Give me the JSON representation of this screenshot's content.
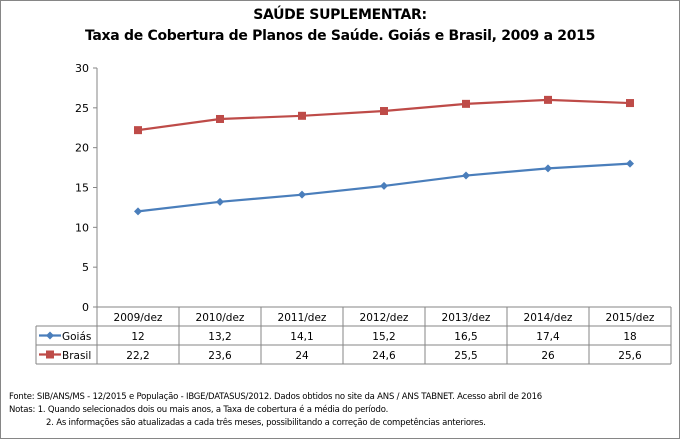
{
  "chart_data": {
    "type": "line",
    "title": "SAÚDE SUPLEMENTAR:",
    "subtitle": "Taxa de Cobertura de Planos de Saúde. Goiás e Brasil, 2009 a 2015",
    "categories": [
      "2009/dez",
      "2010/dez",
      "2011/dez",
      "2012/dez",
      "2013/dez",
      "2014/dez",
      "2015/dez"
    ],
    "series": [
      {
        "name": "Goiás",
        "values": [
          12,
          13.2,
          14.1,
          15.2,
          16.5,
          17.4,
          18
        ],
        "labels": [
          "12",
          "13,2",
          "14,1",
          "15,2",
          "16,5",
          "17,4",
          "18"
        ],
        "color": "#4a7ebb",
        "marker": "diamond"
      },
      {
        "name": "Brasil",
        "values": [
          22.2,
          23.6,
          24,
          24.6,
          25.5,
          26,
          25.6
        ],
        "labels": [
          "22,2",
          "23,6",
          "24",
          "24,6",
          "25,5",
          "26",
          "25,6"
        ],
        "color": "#be4b48",
        "marker": "square"
      }
    ],
    "ylim": [
      0,
      30
    ],
    "yticks": [
      0,
      5,
      10,
      15,
      20,
      25,
      30
    ],
    "grid": false,
    "legend": "data-table"
  },
  "notes": {
    "source": "Fonte: SIB/ANS/MS - 12/2015 e População - IBGE/DATASUS/2012. Dados obtidos no site da ANS / ANS TABNET. Acesso abril de 2016",
    "note1": "Notas: 1. Quando selecionados dois ou mais anos, a Taxa de cobertura é a média do período.",
    "note2": "2. As informações são atualizadas a cada três meses, possibilitando a correção de competências anteriores."
  }
}
